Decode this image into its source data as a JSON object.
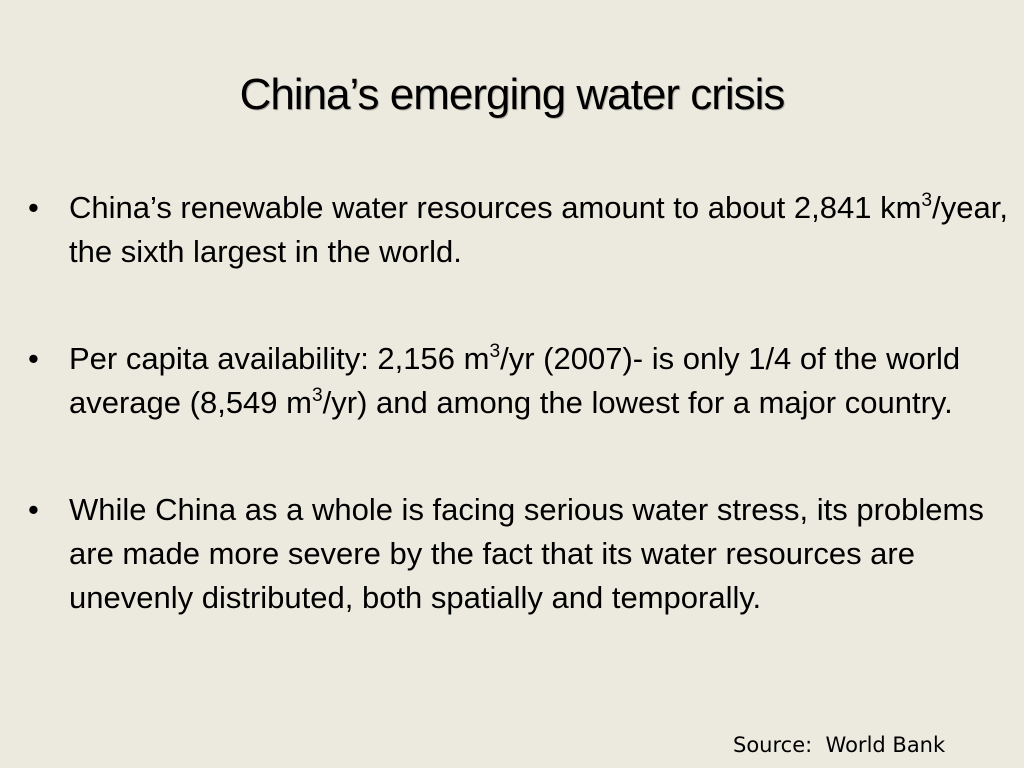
{
  "slide": {
    "title": "China’s emerging water crisis",
    "bullet_marker": "•",
    "bullets": [
      {
        "part1": "China’s renewable water resources amount to about 2,841 km",
        "sup1": "3",
        "part2": "/year, the sixth largest in the world."
      },
      {
        "part1": "Per capita availability: 2,156 m",
        "sup1": "3",
        "part2": "/yr (2007)- is only 1/4 of the world average (8,549 m",
        "sup2": "3",
        "part3": "/yr) and among the lowest for a major country."
      },
      {
        "part1": "While China as a whole is facing serious water stress, its problems are made more severe by the fact that its water resources are unevenly distributed, both spatially and temporally."
      }
    ],
    "source": "Source:  World Bank"
  }
}
